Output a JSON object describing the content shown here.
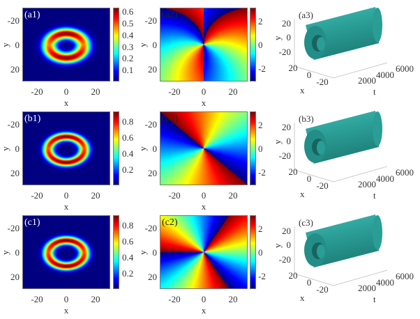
{
  "chart_data": [
    {
      "panel": "(a1)",
      "type": "heatmap",
      "quantity": "amplitude",
      "xlabel": "x",
      "ylabel": "y",
      "xticks": [
        "-20",
        "0",
        "20"
      ],
      "yticks": [
        "-20",
        "0",
        "20"
      ],
      "xlim": [
        -30,
        30
      ],
      "ylim": [
        -30,
        30
      ],
      "colorbar_ticks": [
        "0.1",
        "0.2",
        "0.3",
        "0.4",
        "0.5",
        "0.6"
      ],
      "clim": [
        0,
        0.63
      ],
      "colormap": "jet"
    },
    {
      "panel": "(a2)",
      "type": "heatmap",
      "quantity": "phase",
      "xlabel": "x",
      "ylabel": "y",
      "xticks": [
        "-20",
        "0",
        "20"
      ],
      "yticks": [
        "-20",
        "0",
        "20"
      ],
      "xlim": [
        -30,
        30
      ],
      "ylim": [
        -30,
        30
      ],
      "colorbar_ticks": [
        "2",
        "0",
        "-2"
      ],
      "clim": [
        -3.14,
        3.14
      ],
      "colormap": "jet"
    },
    {
      "panel": "(a3)",
      "type": "isosurface-3d",
      "xlabel": "x",
      "ylabel": "y",
      "zlabel": "t",
      "xticks": [
        "20",
        "0",
        "-20"
      ],
      "yticks": [
        "20",
        "0",
        "-20"
      ],
      "tticks": [
        "2000",
        "4000",
        "6000"
      ],
      "color": "#2a9d95"
    },
    {
      "panel": "(b1)",
      "type": "heatmap",
      "quantity": "amplitude",
      "xlabel": "x",
      "ylabel": "y",
      "xticks": [
        "-20",
        "0",
        "20"
      ],
      "yticks": [
        "-20",
        "0",
        "20"
      ],
      "xlim": [
        -30,
        30
      ],
      "ylim": [
        -30,
        30
      ],
      "colorbar_ticks": [
        "0.2",
        "0.4",
        "0.6",
        "0.8"
      ],
      "clim": [
        0,
        0.92
      ],
      "colormap": "jet"
    },
    {
      "panel": "(b2)",
      "type": "heatmap",
      "quantity": "phase",
      "xlabel": "x",
      "ylabel": "y",
      "xticks": [
        "-20",
        "0",
        "20"
      ],
      "yticks": [
        "-20",
        "0",
        "20"
      ],
      "xlim": [
        -30,
        30
      ],
      "ylim": [
        -30,
        30
      ],
      "colorbar_ticks": [
        "2",
        "0",
        "-2"
      ],
      "clim": [
        -3.14,
        3.14
      ],
      "colormap": "jet"
    },
    {
      "panel": "(b3)",
      "type": "isosurface-3d",
      "xlabel": "x",
      "ylabel": "y",
      "zlabel": "t",
      "xticks": [
        "20",
        "0",
        "-20"
      ],
      "yticks": [
        "20",
        "0",
        "-20"
      ],
      "tticks": [
        "2000",
        "4000",
        "6000"
      ],
      "color": "#2a9d95"
    },
    {
      "panel": "(c1)",
      "type": "heatmap",
      "quantity": "amplitude",
      "xlabel": "x",
      "ylabel": "y",
      "xticks": [
        "-20",
        "0",
        "20"
      ],
      "yticks": [
        "-20",
        "0",
        "20"
      ],
      "xlim": [
        -30,
        30
      ],
      "ylim": [
        -30,
        30
      ],
      "colorbar_ticks": [
        "0.2",
        "0.4",
        "0.6",
        "0.8"
      ],
      "clim": [
        0,
        0.92
      ],
      "colormap": "jet"
    },
    {
      "panel": "(c2)",
      "type": "heatmap",
      "quantity": "phase",
      "xlabel": "x",
      "ylabel": "y",
      "xticks": [
        "-20",
        "0",
        "20"
      ],
      "yticks": [
        "-20",
        "0",
        "20"
      ],
      "xlim": [
        -30,
        30
      ],
      "ylim": [
        -30,
        30
      ],
      "colorbar_ticks": [
        "2",
        "0",
        "-2"
      ],
      "clim": [
        -3.14,
        3.14
      ],
      "colormap": "jet"
    },
    {
      "panel": "(c3)",
      "type": "isosurface-3d",
      "xlabel": "x",
      "ylabel": "y",
      "zlabel": "t",
      "xticks": [
        "20",
        "0",
        "-20"
      ],
      "yticks": [
        "20",
        "0",
        "-20"
      ],
      "tticks": [
        "2000",
        "4000",
        "6000"
      ],
      "color": "#2a9d95"
    }
  ]
}
